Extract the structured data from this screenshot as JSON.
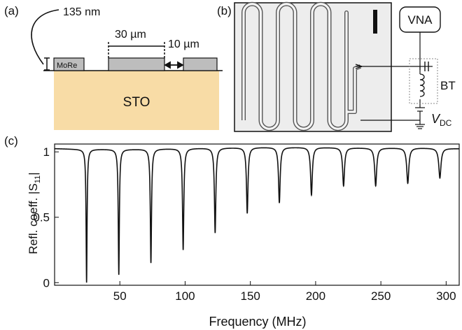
{
  "panel_a": {
    "label": "(a)",
    "thickness": "135 nm",
    "width_label": "30 µm",
    "gap_label": "10 µm",
    "film_label": "MoRe",
    "substrate_label": "STO",
    "substrate_color": "#f8dca6",
    "film_color": "#bdbdbd"
  },
  "panel_b": {
    "label": "(b)",
    "vna_label": "VNA",
    "bt_label": "BT",
    "vdc_main": "V",
    "vdc_sub": "DC",
    "meander_columns": 7
  },
  "panel_c": {
    "label": "(c)"
  },
  "chart_data": {
    "type": "line",
    "xlabel": "Frequency (MHz)",
    "ylabel_main": "Refl. coeff. |S",
    "ylabel_sub": "11",
    "ylabel_end": "|",
    "xlim": [
      0,
      310
    ],
    "ylim": [
      -0.02,
      1.06
    ],
    "xticks": [
      50,
      100,
      150,
      200,
      250,
      300
    ],
    "yticks": [
      {
        "v": 0,
        "t": "0"
      },
      {
        "v": 0.5,
        "t": "0.5"
      },
      {
        "v": 1,
        "t": "1"
      }
    ],
    "resonances": [
      {
        "f": 24.5,
        "min": 0.0,
        "w": 0.45
      },
      {
        "f": 49.2,
        "min": 0.06,
        "w": 0.5
      },
      {
        "f": 73.8,
        "min": 0.15,
        "w": 0.55
      },
      {
        "f": 98.5,
        "min": 0.25,
        "w": 0.6
      },
      {
        "f": 123.0,
        "min": 0.38,
        "w": 0.65
      },
      {
        "f": 147.6,
        "min": 0.53,
        "w": 0.7
      },
      {
        "f": 172.2,
        "min": 0.61,
        "w": 0.75
      },
      {
        "f": 196.8,
        "min": 0.67,
        "w": 0.8
      },
      {
        "f": 221.4,
        "min": 0.74,
        "w": 0.85
      },
      {
        "f": 246.0,
        "min": 0.74,
        "w": 0.9
      },
      {
        "f": 270.6,
        "min": 0.76,
        "w": 0.95
      },
      {
        "f": 295.2,
        "min": 0.8,
        "w": 1.0
      }
    ],
    "baseline_points": [
      [
        0,
        1.025
      ],
      [
        20,
        1.02
      ],
      [
        60,
        1.02
      ],
      [
        120,
        1.03
      ],
      [
        160,
        1.035
      ],
      [
        200,
        1.035
      ],
      [
        240,
        1.03
      ],
      [
        280,
        1.03
      ],
      [
        310,
        1.025
      ]
    ]
  }
}
